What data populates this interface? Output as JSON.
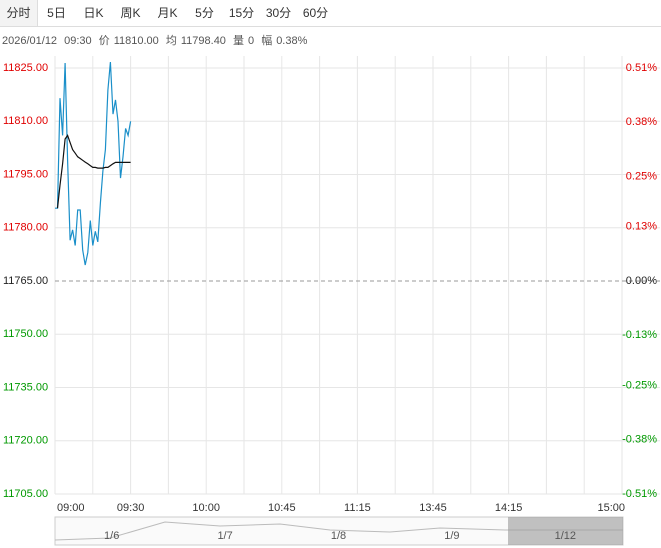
{
  "tabs": [
    "分时",
    "5日",
    "日K",
    "周K",
    "月K",
    "5分",
    "15分",
    "30分",
    "60分"
  ],
  "info": {
    "date": "2026/01/12",
    "time": "09:30",
    "price_label": "价",
    "price": "11810.00",
    "avg_label": "均",
    "avg": "11798.40",
    "vol_label": "量",
    "vol": "0",
    "range_label": "幅",
    "range": "0.38%"
  },
  "navigator": {
    "labels": [
      "1/6",
      "1/7",
      "1/8",
      "1/9",
      "1/12"
    ]
  },
  "chart_data": {
    "type": "line",
    "x_labels": [
      "09:00",
      "09:30",
      "10:00",
      "10:45",
      "11:15",
      "13:45",
      "14:15",
      "15:00"
    ],
    "ylim": [
      11705,
      11825
    ],
    "yticks": [
      {
        "value": 11825,
        "label": "11825.00"
      },
      {
        "value": 11810,
        "label": "11810.00"
      },
      {
        "value": 11795,
        "label": "11795.00"
      },
      {
        "value": 11780,
        "label": "11780.00"
      },
      {
        "value": 11765,
        "label": "11765.00"
      },
      {
        "value": 11750,
        "label": "11750.00"
      },
      {
        "value": 11735,
        "label": "11735.00"
      },
      {
        "value": 11720,
        "label": "11720.00"
      },
      {
        "value": 11705,
        "label": "11705.00"
      }
    ],
    "y2lim": [
      -0.51,
      0.51
    ],
    "y2ticks": [
      {
        "value": 0.51,
        "label": "0.51%"
      },
      {
        "value": 0.38,
        "label": "0.38%"
      },
      {
        "value": 0.25,
        "label": "0.25%"
      },
      {
        "value": 0.13,
        "label": "0.13%"
      },
      {
        "value": 0,
        "label": "0.00%"
      },
      {
        "value": -0.13,
        "label": "-0.13%"
      },
      {
        "value": -0.25,
        "label": "-0.25%"
      },
      {
        "value": -0.38,
        "label": "-0.38%"
      },
      {
        "value": -0.51,
        "label": "-0.51%"
      }
    ],
    "up_color": "#e00000",
    "down_color": "#009900",
    "flat_color": "#222222",
    "series": [
      {
        "color": "#1a8fc9",
        "values": [
          11785.5,
          11785.5,
          11816.5,
          11806,
          11826.4,
          11799,
          11776.5,
          11779.4,
          11775,
          11785,
          11785,
          11773.7,
          11769.5,
          11773,
          11782,
          11775,
          11779,
          11776,
          11787,
          11796,
          11802,
          11818.8,
          11826.7,
          11812,
          11816,
          11810,
          11794,
          11800,
          11808,
          11806,
          11810
        ]
      },
      {
        "color": "#111111",
        "values": [
          null,
          11785.5,
          11792,
          11798,
          11805,
          11806,
          11804,
          11802,
          11801,
          11800,
          11799.5,
          11799,
          11798.5,
          11798,
          11797.5,
          11797,
          11797,
          11796.8,
          11796.8,
          11796.8,
          11797,
          11797,
          11797.5,
          11798,
          11798.4,
          11798.4,
          11798.4,
          11798.4,
          11798.4,
          11798.4,
          11798.4
        ]
      }
    ]
  }
}
